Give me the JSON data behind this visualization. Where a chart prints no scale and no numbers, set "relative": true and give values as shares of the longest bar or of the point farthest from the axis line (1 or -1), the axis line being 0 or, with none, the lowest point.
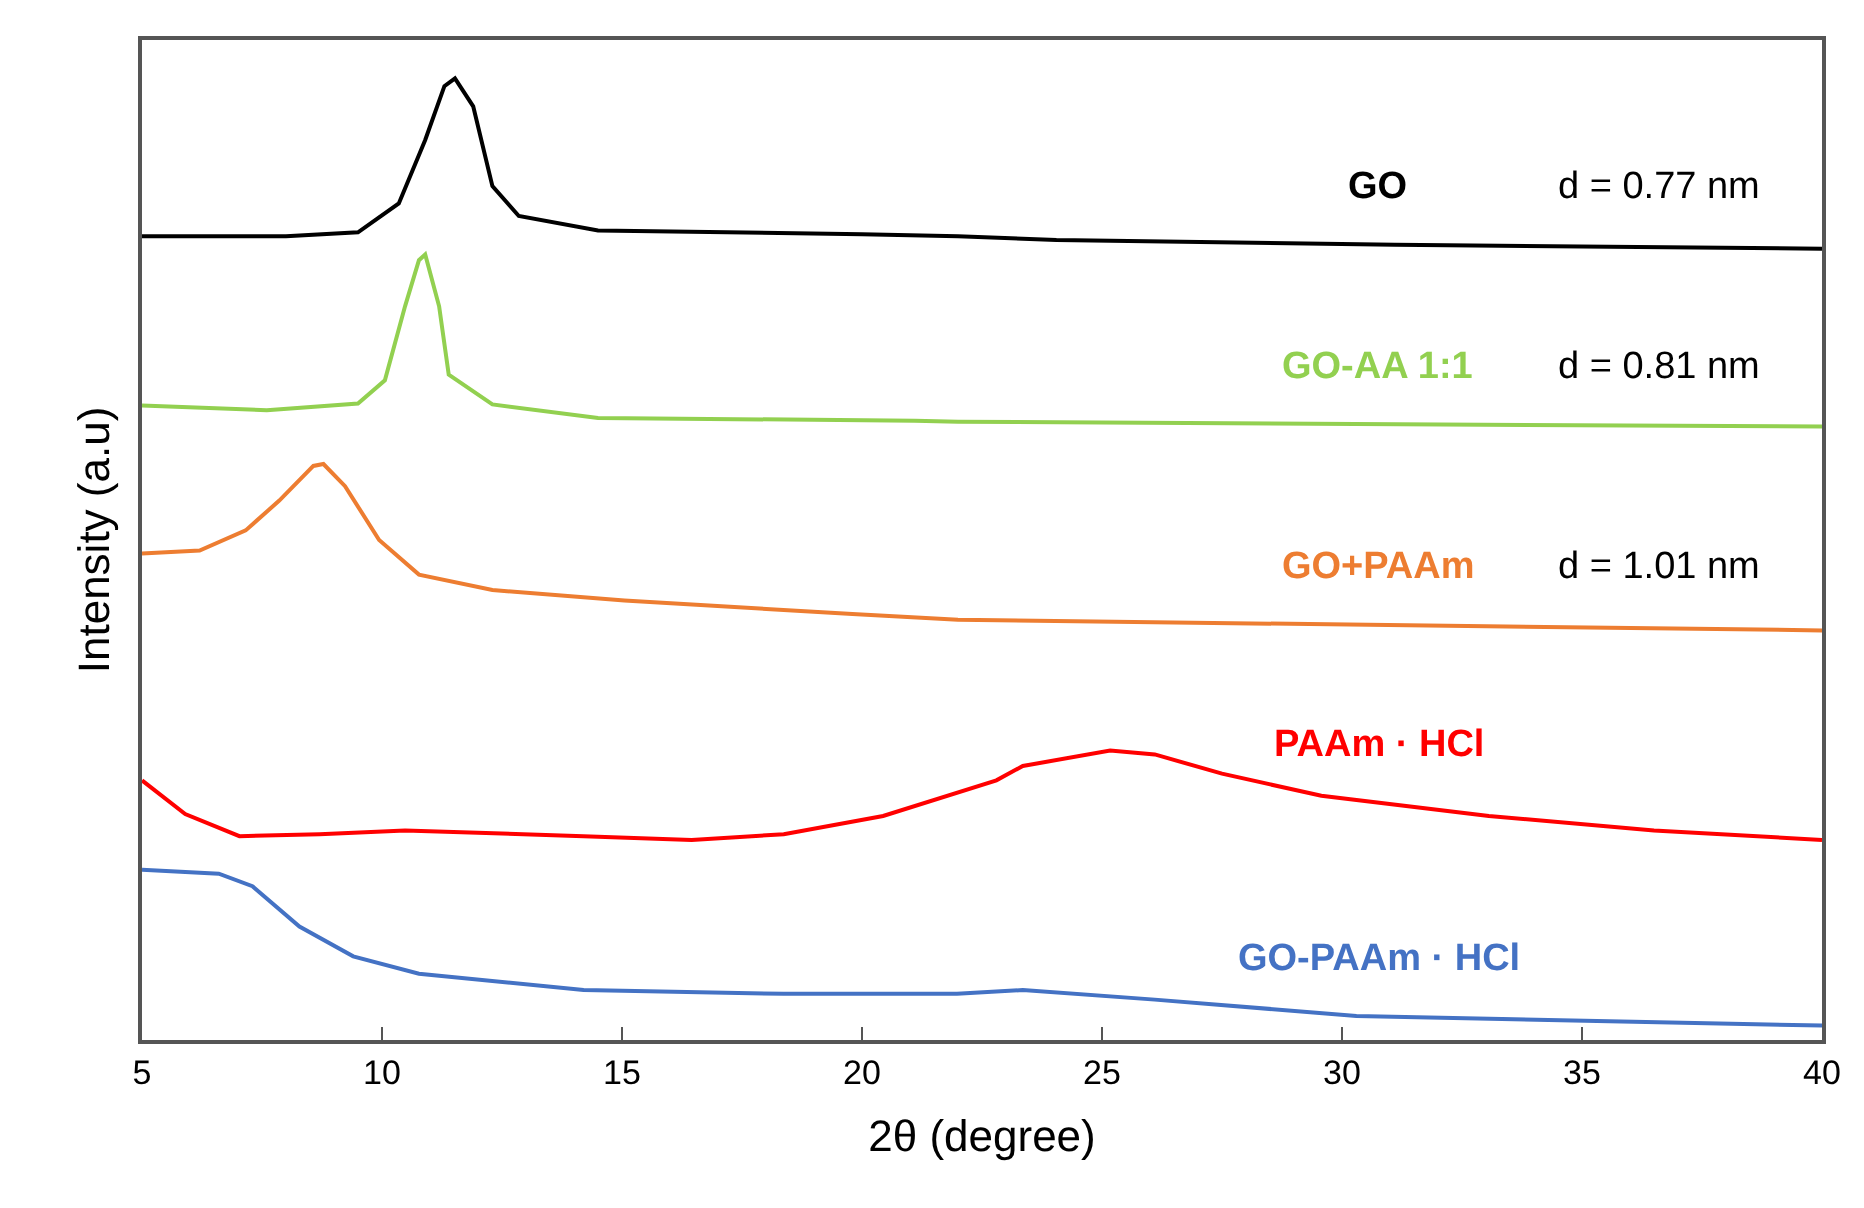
{
  "chart_data": {
    "type": "line",
    "relative": true,
    "xlabel": "2θ (degree)",
    "ylabel": "Intensity (a.u)",
    "xlim": [
      5,
      40
    ],
    "xticks": [
      5,
      10,
      15,
      20,
      25,
      30,
      35,
      40
    ],
    "legend": false,
    "marker": "none",
    "line_style": "solid",
    "series": [
      {
        "name": "GO",
        "color": "#000000",
        "x": [
          5,
          8,
          9.5,
          10.35,
          10.9,
          11.3,
          11.52,
          11.9,
          12.3,
          12.85,
          14.5,
          20,
          22,
          24.05,
          31.1,
          40
        ],
        "values": [
          0.836,
          0.836,
          0.84,
          0.87,
          0.936,
          0.992,
          1.0,
          0.971,
          0.888,
          0.857,
          0.842,
          0.838,
          0.836,
          0.832,
          0.827,
          0.823
        ]
      },
      {
        "name": "GO-AA 1:1",
        "color": "#92d050",
        "x": [
          5,
          7.6,
          9.5,
          10.06,
          10.48,
          10.77,
          10.9,
          11.19,
          11.39,
          12.3,
          14.5,
          21.1,
          22,
          40
        ],
        "values": [
          0.66,
          0.655,
          0.662,
          0.686,
          0.763,
          0.811,
          0.817,
          0.763,
          0.692,
          0.661,
          0.647,
          0.644,
          0.643,
          0.638
        ]
      },
      {
        "name": "GO+PAAm",
        "color": "#ed7d31",
        "x": [
          5,
          6.2,
          7.16,
          7.86,
          8.57,
          8.78,
          9.23,
          9.94,
          10.77,
          12.3,
          15.05,
          19.8,
          22,
          40
        ],
        "values": [
          0.506,
          0.509,
          0.53,
          0.561,
          0.597,
          0.599,
          0.576,
          0.52,
          0.484,
          0.468,
          0.457,
          0.443,
          0.437,
          0.426
        ]
      },
      {
        "name": "PAAm · HCl",
        "color": "#ff0000",
        "x": [
          5,
          5.9,
          7.03,
          8.7,
          10.48,
          14.2,
          16.45,
          18.37,
          20.44,
          22.8,
          23.35,
          25.17,
          26.1,
          27.5,
          29.57,
          33.06,
          36.5,
          40
        ],
        "values": [
          0.27,
          0.235,
          0.212,
          0.214,
          0.218,
          0.212,
          0.208,
          0.214,
          0.233,
          0.27,
          0.285,
          0.301,
          0.297,
          0.277,
          0.254,
          0.233,
          0.218,
          0.208
        ]
      },
      {
        "name": "GO-PAAm · HCl",
        "color": "#4472c4",
        "x": [
          5,
          6.6,
          7.3,
          8.28,
          9.4,
          10.77,
          14.2,
          18.37,
          21.98,
          23.35,
          26.1,
          30.3,
          40
        ],
        "values": [
          0.177,
          0.173,
          0.16,
          0.118,
          0.087,
          0.069,
          0.052,
          0.048,
          0.048,
          0.052,
          0.042,
          0.025,
          0.015
        ]
      }
    ],
    "annotations": [
      "d = 0.77 nm",
      "d = 0.81 nm",
      "d = 1.01 nm"
    ]
  }
}
